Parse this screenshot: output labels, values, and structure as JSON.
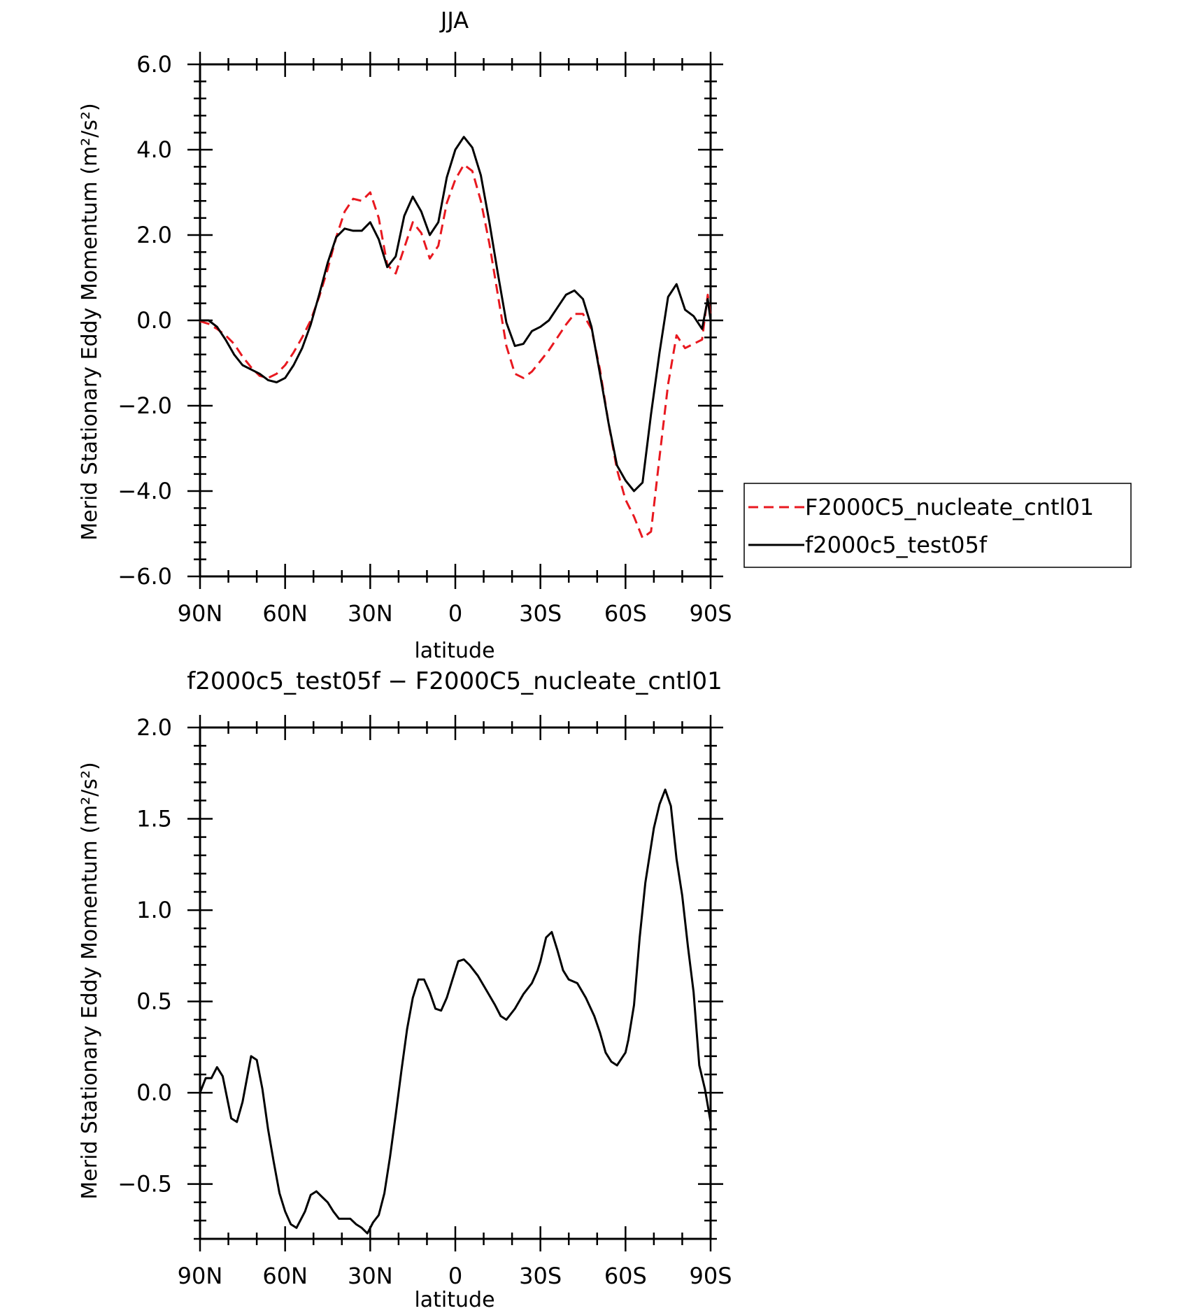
{
  "x_ticks": [
    "90N",
    "60N",
    "30N",
    "0",
    "30S",
    "60S",
    "90S"
  ],
  "legend": {
    "entries": [
      {
        "label": "F2000C5_nucleate_cntl01",
        "color": "#e8181f",
        "style": "dashed"
      },
      {
        "label": "f2000c5_test05f",
        "color": "#000000",
        "style": "solid"
      }
    ]
  },
  "chart_data": [
    {
      "type": "line",
      "title": "JJA",
      "xlabel": "latitude",
      "ylabel": "Merid Stationary Eddy Momentum (m²/s²)",
      "xlim": [
        -90,
        90
      ],
      "ylim": [
        -6.0,
        6.0
      ],
      "x_ticks": [
        -90,
        -60,
        -30,
        0,
        30,
        60,
        90
      ],
      "y_ticks": [
        -6.0,
        -4.0,
        -2.0,
        0.0,
        2.0,
        4.0,
        6.0
      ],
      "y_tick_labels": [
        "−6.0",
        "−4.0",
        "−2.0",
        "0.0",
        "2.0",
        "4.0",
        "6.0"
      ],
      "grid": false,
      "legend_position": "right",
      "series": [
        {
          "name": "F2000C5_nucleate_cntl01",
          "color": "#e8181f",
          "style": "dashed",
          "x": [
            -90,
            -87,
            -84,
            -81,
            -78,
            -75,
            -72,
            -69,
            -66,
            -63,
            -60,
            -57,
            -54,
            -51,
            -48,
            -45,
            -42,
            -39,
            -36,
            -33,
            -30,
            -27,
            -24,
            -21,
            -18,
            -15,
            -12,
            -9,
            -6,
            -3,
            0,
            3,
            6,
            9,
            12,
            15,
            18,
            21,
            24,
            27,
            30,
            33,
            36,
            39,
            42,
            45,
            48,
            51,
            54,
            57,
            60,
            63,
            66,
            69,
            72,
            75,
            78,
            81,
            84,
            87,
            89,
            90
          ],
          "y": [
            -0.02,
            -0.08,
            -0.2,
            -0.35,
            -0.55,
            -0.85,
            -1.1,
            -1.3,
            -1.35,
            -1.25,
            -1.05,
            -0.75,
            -0.4,
            0.0,
            0.55,
            1.2,
            1.95,
            2.55,
            2.85,
            2.8,
            3.0,
            2.4,
            1.3,
            1.1,
            1.7,
            2.3,
            2.05,
            1.45,
            1.75,
            2.75,
            3.3,
            3.65,
            3.5,
            2.8,
            1.8,
            0.6,
            -0.6,
            -1.25,
            -1.35,
            -1.2,
            -0.95,
            -0.7,
            -0.4,
            -0.1,
            0.15,
            0.15,
            -0.2,
            -1.15,
            -2.4,
            -3.5,
            -4.2,
            -4.6,
            -5.1,
            -4.95,
            -3.2,
            -1.5,
            -0.35,
            -0.65,
            -0.55,
            -0.45,
            0.6,
            0.1
          ]
        },
        {
          "name": "f2000c5_test05f",
          "color": "#000000",
          "style": "solid",
          "x": [
            -90,
            -87,
            -84,
            -81,
            -78,
            -75,
            -72,
            -69,
            -66,
            -63,
            -60,
            -57,
            -54,
            -51,
            -48,
            -45,
            -42,
            -39,
            -36,
            -33,
            -30,
            -27,
            -24,
            -21,
            -18,
            -15,
            -12,
            -9,
            -6,
            -3,
            0,
            3,
            6,
            9,
            12,
            15,
            18,
            21,
            24,
            27,
            30,
            33,
            36,
            39,
            42,
            45,
            48,
            51,
            54,
            57,
            60,
            63,
            66,
            69,
            72,
            75,
            78,
            81,
            84,
            87,
            89,
            90
          ],
          "y": [
            0.0,
            0.0,
            -0.15,
            -0.45,
            -0.8,
            -1.05,
            -1.15,
            -1.25,
            -1.4,
            -1.45,
            -1.35,
            -1.05,
            -0.65,
            -0.1,
            0.6,
            1.35,
            1.95,
            2.15,
            2.1,
            2.1,
            2.3,
            1.9,
            1.25,
            1.5,
            2.45,
            2.9,
            2.55,
            2.0,
            2.3,
            3.35,
            4.0,
            4.3,
            4.05,
            3.4,
            2.3,
            1.1,
            -0.05,
            -0.6,
            -0.55,
            -0.25,
            -0.15,
            0.0,
            0.3,
            0.6,
            0.7,
            0.5,
            -0.15,
            -1.25,
            -2.4,
            -3.4,
            -3.75,
            -4.0,
            -3.8,
            -2.2,
            -0.75,
            0.55,
            0.85,
            0.25,
            0.1,
            -0.2,
            0.5,
            0.0
          ]
        }
      ]
    },
    {
      "type": "line",
      "title": "f2000c5_test05f − F2000C5_nucleate_cntl01",
      "xlabel": "latitude",
      "ylabel": "Merid Stationary Eddy Momentum (m²/s²)",
      "xlim": [
        -90,
        90
      ],
      "ylim": [
        -0.8,
        2.0
      ],
      "x_ticks": [
        -90,
        -60,
        -30,
        0,
        30,
        60,
        90
      ],
      "y_ticks": [
        -0.5,
        0.0,
        0.5,
        1.0,
        1.5,
        2.0
      ],
      "y_tick_labels": [
        "−0.5",
        "0.0",
        "0.5",
        "1.0",
        "1.5",
        "2.0"
      ],
      "grid": false,
      "series": [
        {
          "color": "#000000",
          "style": "solid",
          "x": [
            -90,
            -88,
            -86,
            -84,
            -82,
            -79,
            -77,
            -75,
            -72,
            -70,
            -68,
            -66,
            -64,
            -62,
            -60,
            -58,
            -56,
            -53,
            -51,
            -49,
            -47,
            -45,
            -43,
            -41,
            -39,
            -37,
            -35,
            -33,
            -31,
            -29,
            -27,
            -25,
            -23,
            -21,
            -19,
            -17,
            -15,
            -13,
            -11,
            -9,
            -7,
            -5,
            -3,
            -1,
            1,
            3,
            5,
            8,
            11,
            14,
            16,
            18,
            21,
            24,
            27,
            29,
            30,
            32,
            34,
            36,
            38,
            40,
            43,
            46,
            49,
            51,
            53,
            55,
            57,
            60,
            61,
            63,
            65,
            67,
            70,
            72,
            74,
            76,
            78,
            80,
            82,
            84,
            86,
            88,
            90
          ],
          "y": [
            0.0,
            0.08,
            0.08,
            0.14,
            0.09,
            -0.14,
            -0.16,
            -0.05,
            0.2,
            0.18,
            0.02,
            -0.2,
            -0.38,
            -0.55,
            -0.65,
            -0.72,
            -0.74,
            -0.65,
            -0.56,
            -0.54,
            -0.57,
            -0.6,
            -0.65,
            -0.69,
            -0.69,
            -0.69,
            -0.72,
            -0.74,
            -0.77,
            -0.71,
            -0.67,
            -0.55,
            -0.35,
            -0.12,
            0.12,
            0.35,
            0.52,
            0.62,
            0.62,
            0.55,
            0.46,
            0.45,
            0.52,
            0.62,
            0.72,
            0.73,
            0.7,
            0.64,
            0.56,
            0.48,
            0.42,
            0.4,
            0.46,
            0.54,
            0.6,
            0.67,
            0.72,
            0.85,
            0.88,
            0.78,
            0.67,
            0.62,
            0.6,
            0.52,
            0.42,
            0.33,
            0.22,
            0.17,
            0.15,
            0.22,
            0.29,
            0.48,
            0.85,
            1.15,
            1.45,
            1.58,
            1.66,
            1.57,
            1.28,
            1.08,
            0.8,
            0.55,
            0.15,
            0.02,
            -0.16
          ]
        }
      ]
    }
  ]
}
